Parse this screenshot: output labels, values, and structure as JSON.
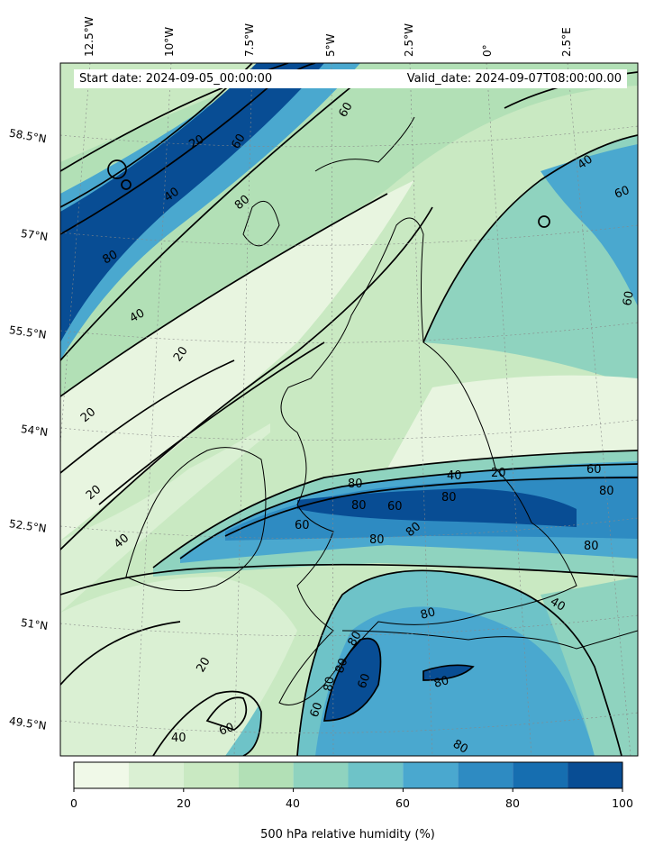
{
  "header": {
    "start_label": "Start date: 2024-09-05_00:00:00",
    "valid_label": "Valid_date: 2024-09-07T08:00:00.00"
  },
  "longitude_labels": [
    "12.5°W",
    "10°W",
    "7.5°W",
    "5°W",
    "2.5°W",
    "0°",
    "2.5°E"
  ],
  "latitude_labels": [
    "58.5°N",
    "57°N",
    "55.5°N",
    "54°N",
    "52.5°N",
    "51°N",
    "49.5°N"
  ],
  "colorbar": {
    "label": "500 hPa relative humidity (%)",
    "ticks": [
      "0",
      "20",
      "40",
      "60",
      "80",
      "100"
    ],
    "range": [
      0,
      100
    ],
    "levels": [
      0,
      10,
      20,
      30,
      40,
      50,
      60,
      70,
      80,
      90,
      100
    ],
    "colors": [
      "#f0f9e8",
      "#daf0d3",
      "#c9e9c2",
      "#b2e0b6",
      "#8fd3bf",
      "#6ec3c8",
      "#4aa8cf",
      "#2e8bc2",
      "#166eb0",
      "#084d94"
    ]
  },
  "contour_labels": {
    "c20": "20",
    "c40": "40",
    "c60": "60",
    "c80": "80"
  }
}
